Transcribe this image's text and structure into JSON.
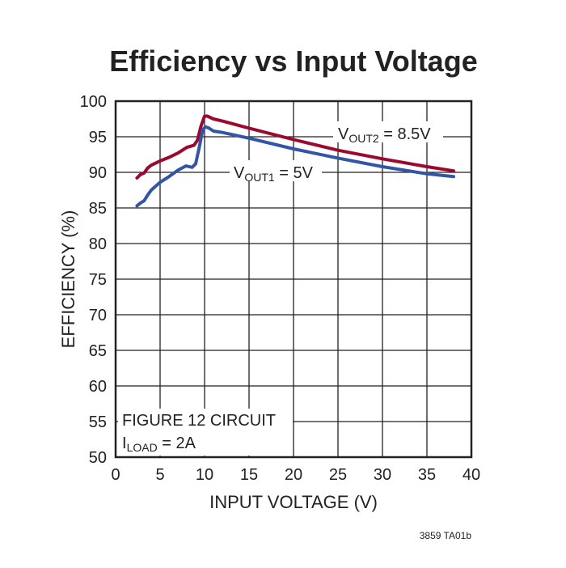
{
  "chart_data": {
    "type": "line",
    "title": "Efficiency vs Input Voltage",
    "xlabel": "INPUT VOLTAGE (V)",
    "ylabel": "EFFICIENCY (%)",
    "xlim": [
      0,
      40
    ],
    "ylim": [
      50,
      100
    ],
    "xticks": [
      0,
      5,
      10,
      15,
      20,
      25,
      30,
      35,
      40
    ],
    "yticks": [
      50,
      55,
      60,
      65,
      70,
      75,
      80,
      85,
      90,
      95,
      100
    ],
    "grid": true,
    "series": [
      {
        "name": "VOUT2 = 8.5V",
        "label_main": "V",
        "label_sub": "OUT2",
        "label_rest": " = 8.5V",
        "color": "#9b0a2e",
        "x": [
          2.4,
          2.8,
          3.2,
          3.6,
          4.0,
          5.0,
          6.0,
          7.0,
          8.0,
          8.8,
          9.2,
          9.6,
          10.0,
          10.3,
          11,
          12,
          15,
          20,
          25,
          30,
          35,
          38
        ],
        "y": [
          89.2,
          89.7,
          89.9,
          90.6,
          91.0,
          91.6,
          92.1,
          92.7,
          93.5,
          93.8,
          94.5,
          96.5,
          97.9,
          97.9,
          97.5,
          97.2,
          96.2,
          94.6,
          93.1,
          91.9,
          90.8,
          90.2
        ]
      },
      {
        "name": "VOUT1 = 5V",
        "label_main": "V",
        "label_sub": "OUT1",
        "label_rest": " = 5V",
        "color": "#3355a6",
        "x": [
          2.4,
          2.8,
          3.2,
          3.6,
          4.0,
          5.0,
          6.0,
          7.0,
          7.9,
          8.6,
          9.0,
          9.4,
          9.8,
          10.1,
          10.5,
          11,
          12,
          15,
          20,
          25,
          30,
          35,
          38
        ],
        "y": [
          85.3,
          85.7,
          86.0,
          86.8,
          87.5,
          88.6,
          89.4,
          90.3,
          90.9,
          90.7,
          91.2,
          93.5,
          96.0,
          96.4,
          96.2,
          95.8,
          95.6,
          94.8,
          93.3,
          92.0,
          90.8,
          89.8,
          89.4
        ]
      }
    ],
    "annotations": {
      "line1": "FIGURE 12 CIRCUIT",
      "iload_main": "I",
      "iload_sub": "LOAD",
      "iload_rest": " = 2A",
      "code": "3859 TA01b"
    }
  }
}
